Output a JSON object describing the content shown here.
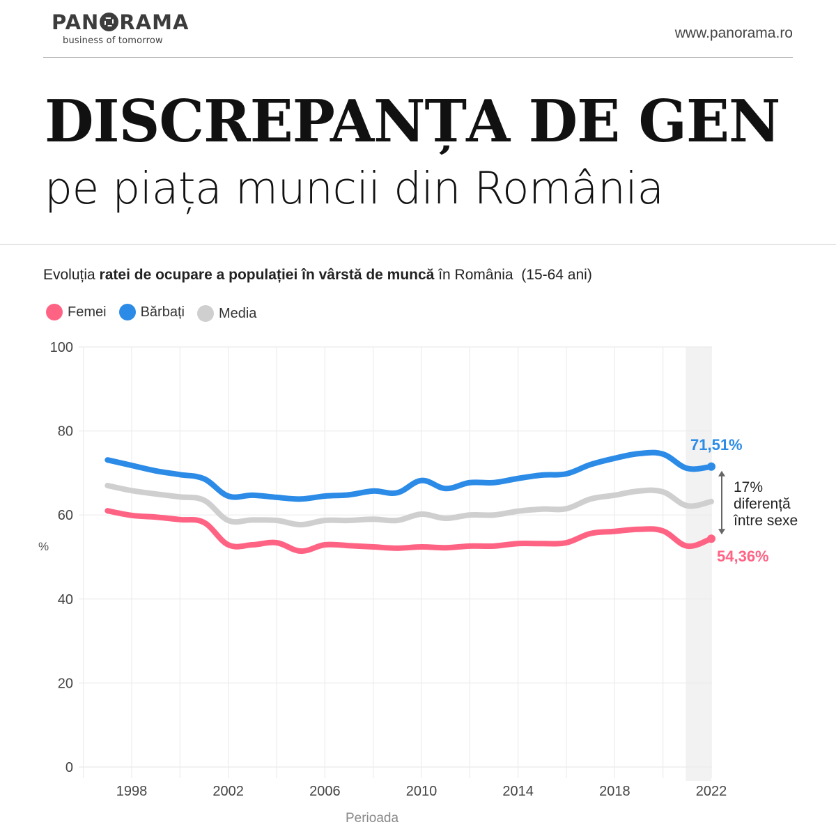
{
  "brand": {
    "name_left": "PAN",
    "name_right": "RAMA",
    "tagline": "business of tomorrow",
    "website": "www.panorama.ro"
  },
  "headline": {
    "title": "DISCREPANȚA DE GEN",
    "subtitle": "pe piața muncii din România"
  },
  "chart_data": {
    "type": "line",
    "title_parts": [
      {
        "text": "Evoluția ",
        "bold": false
      },
      {
        "text": "ratei de ocupare a populației în vârstă de muncă",
        "bold": true
      },
      {
        "text": " în România  (15-64 ani)",
        "bold": false
      }
    ],
    "xlabel": "Perioada",
    "ylabel": "%",
    "ylim": [
      0,
      100
    ],
    "yticks": [
      0,
      20,
      40,
      60,
      80,
      100
    ],
    "xlim": [
      1996,
      2022
    ],
    "xticks": [
      1998,
      2002,
      2006,
      2010,
      2014,
      2018,
      2022
    ],
    "grid": true,
    "legend_position": "top-left",
    "highlight_range": [
      2021,
      2022
    ],
    "x": [
      1997,
      1998,
      1999,
      2000,
      2001,
      2002,
      2003,
      2004,
      2005,
      2006,
      2007,
      2008,
      2009,
      2010,
      2011,
      2012,
      2013,
      2014,
      2015,
      2016,
      2017,
      2018,
      2019,
      2020,
      2021,
      2022
    ],
    "series": [
      {
        "name": "Bărbați",
        "color": "#2b8be6",
        "values": [
          73.1,
          71.8,
          70.5,
          69.6,
          68.6,
          64.5,
          64.7,
          64.2,
          63.8,
          64.5,
          64.8,
          65.7,
          65.3,
          68.2,
          66.3,
          67.7,
          67.7,
          68.7,
          69.5,
          69.8,
          72.0,
          73.5,
          74.6,
          74.5,
          71.1,
          71.51
        ],
        "end_label": "71,51%"
      },
      {
        "name": "Media",
        "color": "#cfcfcf",
        "values": [
          67.0,
          65.8,
          65.0,
          64.3,
          63.5,
          58.7,
          58.8,
          58.7,
          57.7,
          58.7,
          58.7,
          59.0,
          58.7,
          60.2,
          59.2,
          60.0,
          60.0,
          60.9,
          61.4,
          61.5,
          63.8,
          64.7,
          65.7,
          65.5,
          62.2,
          63.2
        ],
        "end_label": ""
      },
      {
        "name": "Femei",
        "color": "#ff6384",
        "values": [
          61.0,
          59.9,
          59.5,
          58.9,
          58.2,
          52.9,
          52.9,
          53.4,
          51.4,
          52.9,
          52.7,
          52.4,
          52.1,
          52.4,
          52.2,
          52.6,
          52.6,
          53.2,
          53.2,
          53.4,
          55.6,
          56.1,
          56.6,
          56.2,
          52.6,
          54.36
        ],
        "end_label": "54,36%"
      }
    ],
    "legend": [
      {
        "name": "Femei",
        "color": "#ff6384"
      },
      {
        "name": "Bărbați",
        "color": "#2b8be6"
      },
      {
        "name": "Media",
        "color": "#cfcfcf"
      }
    ],
    "annotation": {
      "lines": [
        "17%",
        "diferență",
        "între sexe"
      ],
      "color": "#666666"
    }
  }
}
